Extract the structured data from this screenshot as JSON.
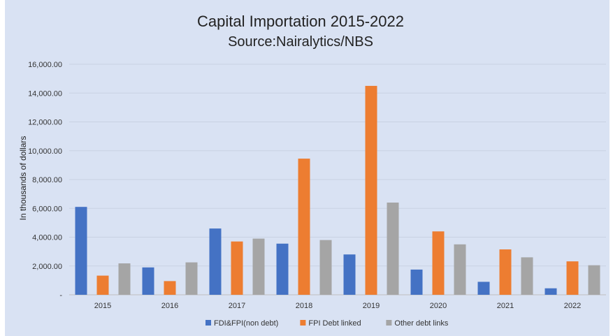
{
  "chart_data": {
    "type": "bar",
    "title": "Capital Importation 2015-2022",
    "subtitle": "Source:Nairalytics/NBS",
    "xlabel": "",
    "ylabel": "In thousands of dollars",
    "categories": [
      "2015",
      "2016",
      "2017",
      "2018",
      "2019",
      "2020",
      "2021",
      "2022"
    ],
    "ylim": [
      0,
      16000
    ],
    "yticks": [
      0,
      2000,
      4000,
      6000,
      8000,
      10000,
      12000,
      14000,
      16000
    ],
    "ytick_labels": [
      "-",
      "2,000.00",
      "4,000.00",
      "6,000.00",
      "8,000.00",
      "10,000.00",
      "12,000.00",
      "14,000.00",
      "16,000.00"
    ],
    "grid": true,
    "legend_position": "bottom",
    "series": [
      {
        "name": "FDI&FPI(non debt)",
        "color": "#4472c4",
        "values": [
          6100,
          1900,
          4600,
          3550,
          2800,
          1750,
          900,
          450
        ]
      },
      {
        "name": "FPI Debt linked",
        "color": "#ed7d31",
        "values": [
          1330,
          950,
          3700,
          9450,
          14500,
          4400,
          3150,
          2320
        ]
      },
      {
        "name": "Other debt links",
        "color": "#a5a5a5",
        "values": [
          2180,
          2250,
          3900,
          3800,
          6400,
          3500,
          2600,
          2050
        ]
      }
    ]
  }
}
